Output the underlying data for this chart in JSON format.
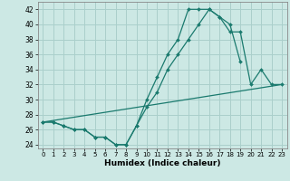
{
  "xlabel": "Humidex (Indice chaleur)",
  "ylabel": "",
  "xlim": [
    -0.5,
    23.5
  ],
  "ylim": [
    23.5,
    43
  ],
  "yticks": [
    24,
    26,
    28,
    30,
    32,
    34,
    36,
    38,
    40,
    42
  ],
  "xticks": [
    0,
    1,
    2,
    3,
    4,
    5,
    6,
    7,
    8,
    9,
    10,
    11,
    12,
    13,
    14,
    15,
    16,
    17,
    18,
    19,
    20,
    21,
    22,
    23
  ],
  "bg_color": "#cce8e4",
  "grid_color": "#aacfcb",
  "line_color": "#1a7a6e",
  "line1_y": [
    27,
    27,
    26.5,
    26,
    26,
    25,
    25,
    24,
    24,
    26.5,
    29,
    31,
    34,
    36,
    38,
    40,
    42,
    41,
    39,
    39,
    32,
    34,
    32,
    32
  ],
  "line2_y": [
    27,
    27,
    26.5,
    26,
    26,
    25,
    25,
    24,
    24,
    26.5,
    30,
    33,
    36,
    38,
    42,
    42,
    42,
    41,
    40,
    35,
    null,
    null,
    null,
    null
  ],
  "line3_x": [
    0,
    23
  ],
  "line3_y": [
    27,
    32
  ]
}
